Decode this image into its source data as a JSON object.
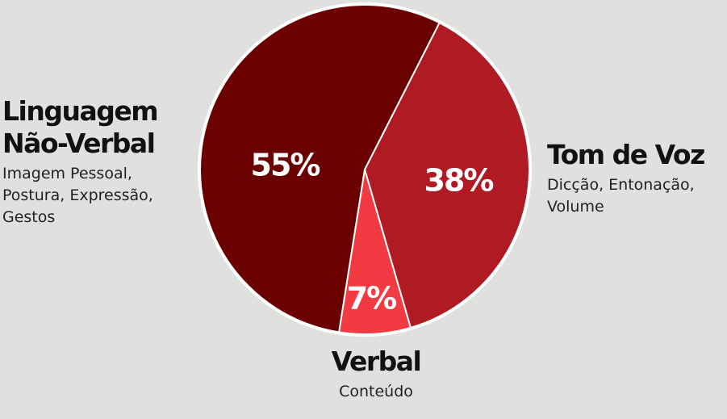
{
  "chart_data": {
    "type": "pie",
    "series": [
      {
        "name": "Tom de Voz",
        "description": "Dicção, Entonação, Volume",
        "value": 38,
        "value_label": "38%",
        "color": "#b01a22"
      },
      {
        "name": "Verbal",
        "description": "Conteúdo",
        "value": 7,
        "value_label": "7%",
        "color": "#f23a42"
      },
      {
        "name": "Linguagem Não-Verbal",
        "description": "Imagem Pessoal, Postura, Expressão, Gestos",
        "value": 55,
        "value_label": "55%",
        "color": "#6b0000"
      }
    ]
  }
}
